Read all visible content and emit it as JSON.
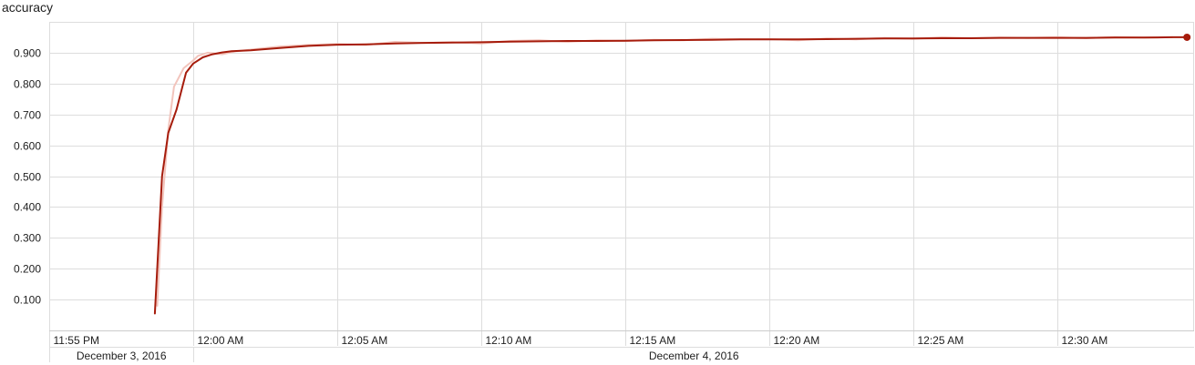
{
  "chart_data": {
    "type": "line",
    "title": "accuracy",
    "xlabel": "",
    "ylabel": "",
    "x_unit": "clock time",
    "x_range": [
      "11:54 PM",
      "12:35 AM"
    ],
    "ylim": [
      0,
      1.0
    ],
    "y_ticks": [
      0.1,
      0.2,
      0.3,
      0.4,
      0.5,
      0.6,
      0.7,
      0.8,
      0.9
    ],
    "y_tick_labels": [
      "0.100",
      "0.200",
      "0.300",
      "0.400",
      "0.500",
      "0.600",
      "0.700",
      "0.800",
      "0.900"
    ],
    "x_ticks": [
      "11:55 PM",
      "12:00 AM",
      "12:05 AM",
      "12:10 AM",
      "12:15 AM",
      "12:20 AM",
      "12:25 AM",
      "12:30 AM"
    ],
    "date_labels": [
      "December 3, 2016",
      "December 4, 2016"
    ],
    "grid": true,
    "colors": {
      "smoothed": "#a61c0c",
      "raw": "#f2c4bc",
      "grid": "#dddddd"
    },
    "series": [
      {
        "style": "raw",
        "x": [
          "11:58:45 PM",
          "11:58:55 PM",
          "11:59:08 PM",
          "11:59:20 PM",
          "11:59:40 PM",
          "12:00:00 AM",
          "12:00:10 AM",
          "12:00:30 AM",
          "12:01:00 AM",
          "12:01:30 AM",
          "12:02:00 AM",
          "12:03:00 AM",
          "12:04:00 AM",
          "12:05:00 AM",
          "12:06:00 AM",
          "12:07:00 AM",
          "12:08:00 AM",
          "12:09:00 AM",
          "12:10:00 AM",
          "12:11:00 AM",
          "12:12:00 AM",
          "12:13:00 AM",
          "12:14:00 AM",
          "12:15:00 AM",
          "12:16:00 AM",
          "12:17:00 AM",
          "12:18:00 AM",
          "12:19:00 AM",
          "12:20:00 AM",
          "12:21:00 AM",
          "12:22:00 AM",
          "12:23:00 AM",
          "12:24:00 AM",
          "12:25:00 AM",
          "12:26:00 AM",
          "12:27:00 AM",
          "12:28:00 AM",
          "12:29:00 AM",
          "12:30:00 AM",
          "12:31:00 AM",
          "12:32:00 AM",
          "12:33:00 AM",
          "12:34:00 AM"
        ],
        "values": [
          0.08,
          0.4,
          0.65,
          0.79,
          0.85,
          0.875,
          0.89,
          0.9,
          0.895,
          0.905,
          0.91,
          0.92,
          0.925,
          0.928,
          0.925,
          0.935,
          0.932,
          0.934,
          0.93,
          0.938,
          0.94,
          0.935,
          0.94,
          0.938,
          0.942,
          0.94,
          0.945,
          0.943,
          0.944,
          0.94,
          0.946,
          0.943,
          0.948,
          0.945,
          0.95,
          0.947,
          0.949,
          0.948,
          0.95,
          0.947,
          0.951,
          0.949,
          0.95
        ]
      },
      {
        "style": "smoothed",
        "x": [
          "11:58:40 PM",
          "11:58:55 PM",
          "11:59:08 PM",
          "11:59:25 PM",
          "11:59:45 PM",
          "12:00:00 AM",
          "12:00:20 AM",
          "12:00:40 AM",
          "12:01:00 AM",
          "12:01:20 AM",
          "12:02:00 AM",
          "12:03:00 AM",
          "12:04:00 AM",
          "12:05:00 AM",
          "12:06:00 AM",
          "12:07:00 AM",
          "12:08:00 AM",
          "12:09:00 AM",
          "12:10:00 AM",
          "12:11:00 AM",
          "12:12:00 AM",
          "12:13:00 AM",
          "12:14:00 AM",
          "12:15:00 AM",
          "12:16:00 AM",
          "12:17:00 AM",
          "12:18:00 AM",
          "12:19:00 AM",
          "12:20:00 AM",
          "12:21:00 AM",
          "12:22:00 AM",
          "12:23:00 AM",
          "12:24:00 AM",
          "12:25:00 AM",
          "12:26:00 AM",
          "12:27:00 AM",
          "12:28:00 AM",
          "12:29:00 AM",
          "12:30:00 AM",
          "12:31:00 AM",
          "12:32:00 AM",
          "12:33:00 AM",
          "12:34:00 AM",
          "12:34:30 AM"
        ],
        "values": [
          0.055,
          0.5,
          0.64,
          0.715,
          0.835,
          0.865,
          0.885,
          0.895,
          0.901,
          0.905,
          0.908,
          0.915,
          0.922,
          0.926,
          0.927,
          0.93,
          0.932,
          0.933,
          0.934,
          0.936,
          0.937,
          0.938,
          0.938,
          0.939,
          0.94,
          0.941,
          0.942,
          0.943,
          0.943,
          0.943,
          0.944,
          0.945,
          0.946,
          0.946,
          0.947,
          0.947,
          0.948,
          0.948,
          0.948,
          0.948,
          0.949,
          0.949,
          0.95,
          0.95
        ]
      }
    ]
  }
}
